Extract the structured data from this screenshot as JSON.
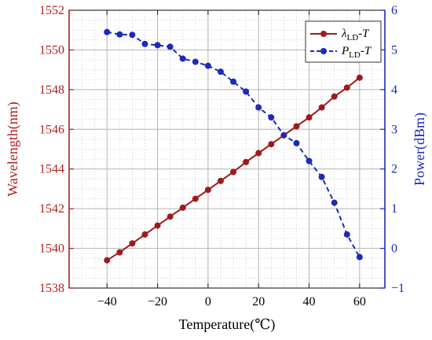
{
  "chart_data": {
    "type": "line",
    "xlabel": "Temperature(℃)",
    "ylabel_left": "Wavelength(nm)",
    "ylabel_right": "Power(dBm)",
    "xlim": [
      -55,
      70
    ],
    "xticks": [
      -40,
      -20,
      0,
      20,
      40,
      60
    ],
    "ylim_left": [
      1538,
      1552
    ],
    "yticks_left": [
      1538,
      1540,
      1542,
      1544,
      1546,
      1548,
      1550,
      1552
    ],
    "ylim_right": [
      -1,
      6
    ],
    "yticks_right": [
      -1,
      0,
      1,
      2,
      3,
      4,
      5,
      6
    ],
    "grid": true,
    "legend_position": "top-right",
    "colors": {
      "left_axis": "#b22222",
      "right_axis": "#1c2bb8",
      "series1": "#9e1b1b",
      "series2": "#1c2bb8"
    },
    "series": [
      {
        "name": "λLD-T",
        "legend_main": "λ",
        "legend_sub": "LD",
        "legend_tail": "-T",
        "axis": "left",
        "style": "solid",
        "x": [
          -40,
          -35,
          -30,
          -25,
          -20,
          -15,
          -10,
          -5,
          0,
          5,
          10,
          15,
          20,
          25,
          30,
          35,
          40,
          45,
          50,
          55,
          60
        ],
        "y": [
          1539.4,
          1539.8,
          1540.25,
          1540.7,
          1541.15,
          1541.6,
          1542.05,
          1542.5,
          1542.95,
          1543.4,
          1543.85,
          1544.35,
          1544.8,
          1545.25,
          1545.7,
          1546.15,
          1546.6,
          1547.1,
          1547.65,
          1548.1,
          1548.6
        ]
      },
      {
        "name": "PLD-T",
        "legend_main": "P",
        "legend_sub": "LD",
        "legend_tail": "-T",
        "axis": "right",
        "style": "dashed",
        "x": [
          -40,
          -35,
          -30,
          -25,
          -20,
          -15,
          -10,
          -5,
          0,
          5,
          10,
          15,
          20,
          25,
          30,
          35,
          40,
          45,
          50,
          55,
          60
        ],
        "y": [
          5.45,
          5.39,
          5.38,
          5.15,
          5.12,
          5.08,
          4.78,
          4.7,
          4.6,
          4.45,
          4.2,
          3.95,
          3.55,
          3.3,
          2.85,
          2.65,
          2.2,
          1.8,
          1.15,
          0.35,
          -0.22
        ]
      }
    ]
  }
}
